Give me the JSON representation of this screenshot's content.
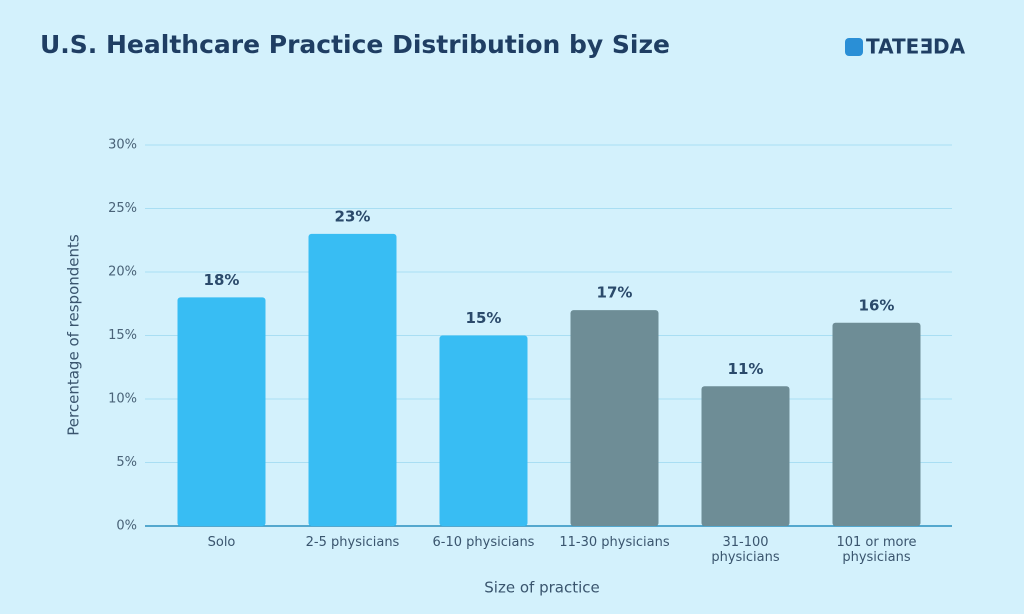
{
  "brand": "TATEƎDA",
  "chart_data": {
    "type": "bar",
    "title": "U.S. Healthcare Practice Distribution by Size",
    "x_label": "Size of practice",
    "y_label": "Percentage of respondents",
    "categories": [
      "Solo",
      "2-5 physicians",
      "6-10 physicians",
      "11-30 physicians",
      "31-100 physicians",
      "101 or more physicians"
    ],
    "values": [
      18,
      23,
      15,
      17,
      11,
      16
    ],
    "value_labels": [
      "18%",
      "23%",
      "15%",
      "17%",
      "11%",
      "16%"
    ],
    "colors": [
      "#38bdf3",
      "#38bdf3",
      "#38bdf3",
      "#6e8d96",
      "#6e8d96",
      "#6e8d96"
    ],
    "ylim": [
      0,
      30
    ],
    "yticks": [
      {
        "value": 0,
        "label": "0%"
      },
      {
        "value": 5,
        "label": "5%"
      },
      {
        "value": 10,
        "label": "10%"
      },
      {
        "value": 15,
        "label": "15%"
      },
      {
        "value": 20,
        "label": "20%"
      },
      {
        "value": 25,
        "label": "25%"
      },
      {
        "value": 30,
        "label": "30%"
      }
    ],
    "grid": true
  }
}
